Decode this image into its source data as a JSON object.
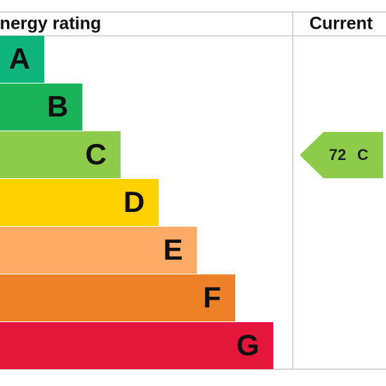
{
  "header": {
    "rating_title": "Energy rating",
    "current_title": "Current"
  },
  "bands": [
    {
      "letter": "A",
      "color": "#0eb47c"
    },
    {
      "letter": "B",
      "color": "#1bb35a"
    },
    {
      "letter": "C",
      "color": "#8ecb4a"
    },
    {
      "letter": "D",
      "color": "#fed100"
    },
    {
      "letter": "E",
      "color": "#fcaa66"
    },
    {
      "letter": "F",
      "color": "#ee8128"
    },
    {
      "letter": "G",
      "color": "#e5163c"
    }
  ],
  "current": {
    "score": 72,
    "band": "C",
    "color": "#8ecb4a"
  }
}
